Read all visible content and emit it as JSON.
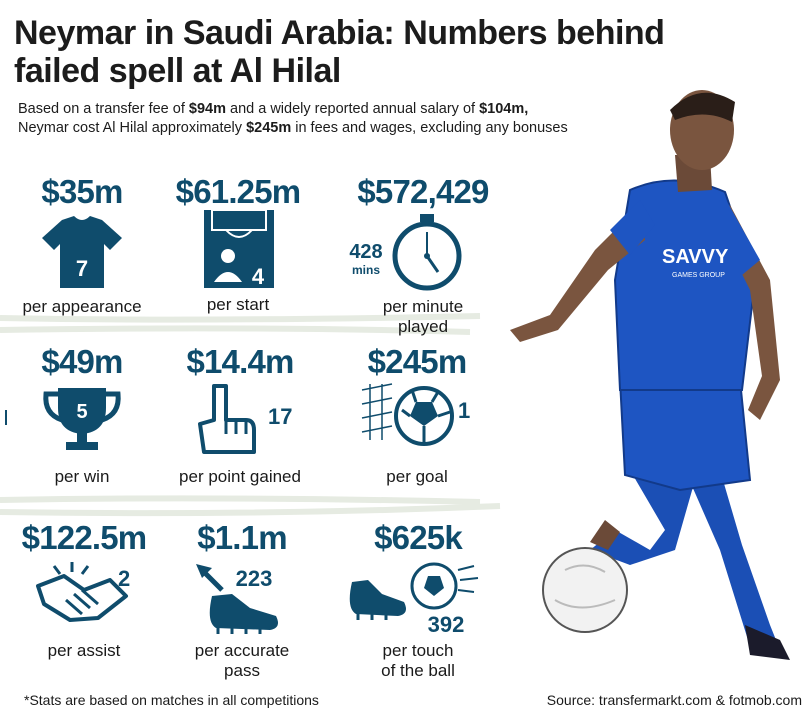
{
  "title": "Neymar in Saudi Arabia: Numbers behind failed spell at Al Hilal",
  "subtitle": {
    "line1_a": "Based on a transfer fee of ",
    "fee": "$94m",
    "line1_b": " and a widely reported annual salary of ",
    "salary": "$104m,",
    "line2_a": "Neymar cost Al Hilal approximately ",
    "total": "$245m",
    "line2_b": " in fees and wages, excluding any bonuses"
  },
  "stats": [
    {
      "value": "$35m",
      "label": "per appearance",
      "icon": "jersey-icon",
      "icon_number": "7"
    },
    {
      "value": "$61.25m",
      "label": "per start",
      "icon": "lineup-icon",
      "icon_number": "4"
    },
    {
      "value": "$572,429",
      "label_line1": "per minute",
      "label_line2": "played",
      "icon": "stopwatch-icon",
      "icon_number": "428",
      "icon_unit": "mins"
    },
    {
      "value": "$49m",
      "label": "per win",
      "icon": "trophy-icon",
      "icon_number": "5"
    },
    {
      "value": "$14.4m",
      "label": "per point gained",
      "icon": "number-one-hand-icon",
      "icon_number": "17"
    },
    {
      "value": "$245m",
      "label": "per goal",
      "icon": "ball-in-net-icon",
      "icon_number": "1"
    },
    {
      "value": "$122.5m",
      "label": "per assist",
      "icon": "handshake-icon",
      "icon_number": "2"
    },
    {
      "value": "$1.1m",
      "label_line1": "per accurate",
      "label_line2": "pass",
      "icon": "boot-pass-icon",
      "icon_number": "223"
    },
    {
      "value": "$625k",
      "label_line1": "per touch",
      "label_line2": "of the ball",
      "icon": "boot-ball-icon",
      "icon_number": "392"
    }
  ],
  "footnote": "*Stats are based on matches in all competitions",
  "source": "Source: transfermarkt.com & fotmob.com",
  "jersey_text": "SAVVY",
  "jersey_subtext": "GAMES GROUP",
  "colors": {
    "accent": "#0f4c6c",
    "kit_blue": "#1b4fb5",
    "sketch": "#e8ece3"
  }
}
